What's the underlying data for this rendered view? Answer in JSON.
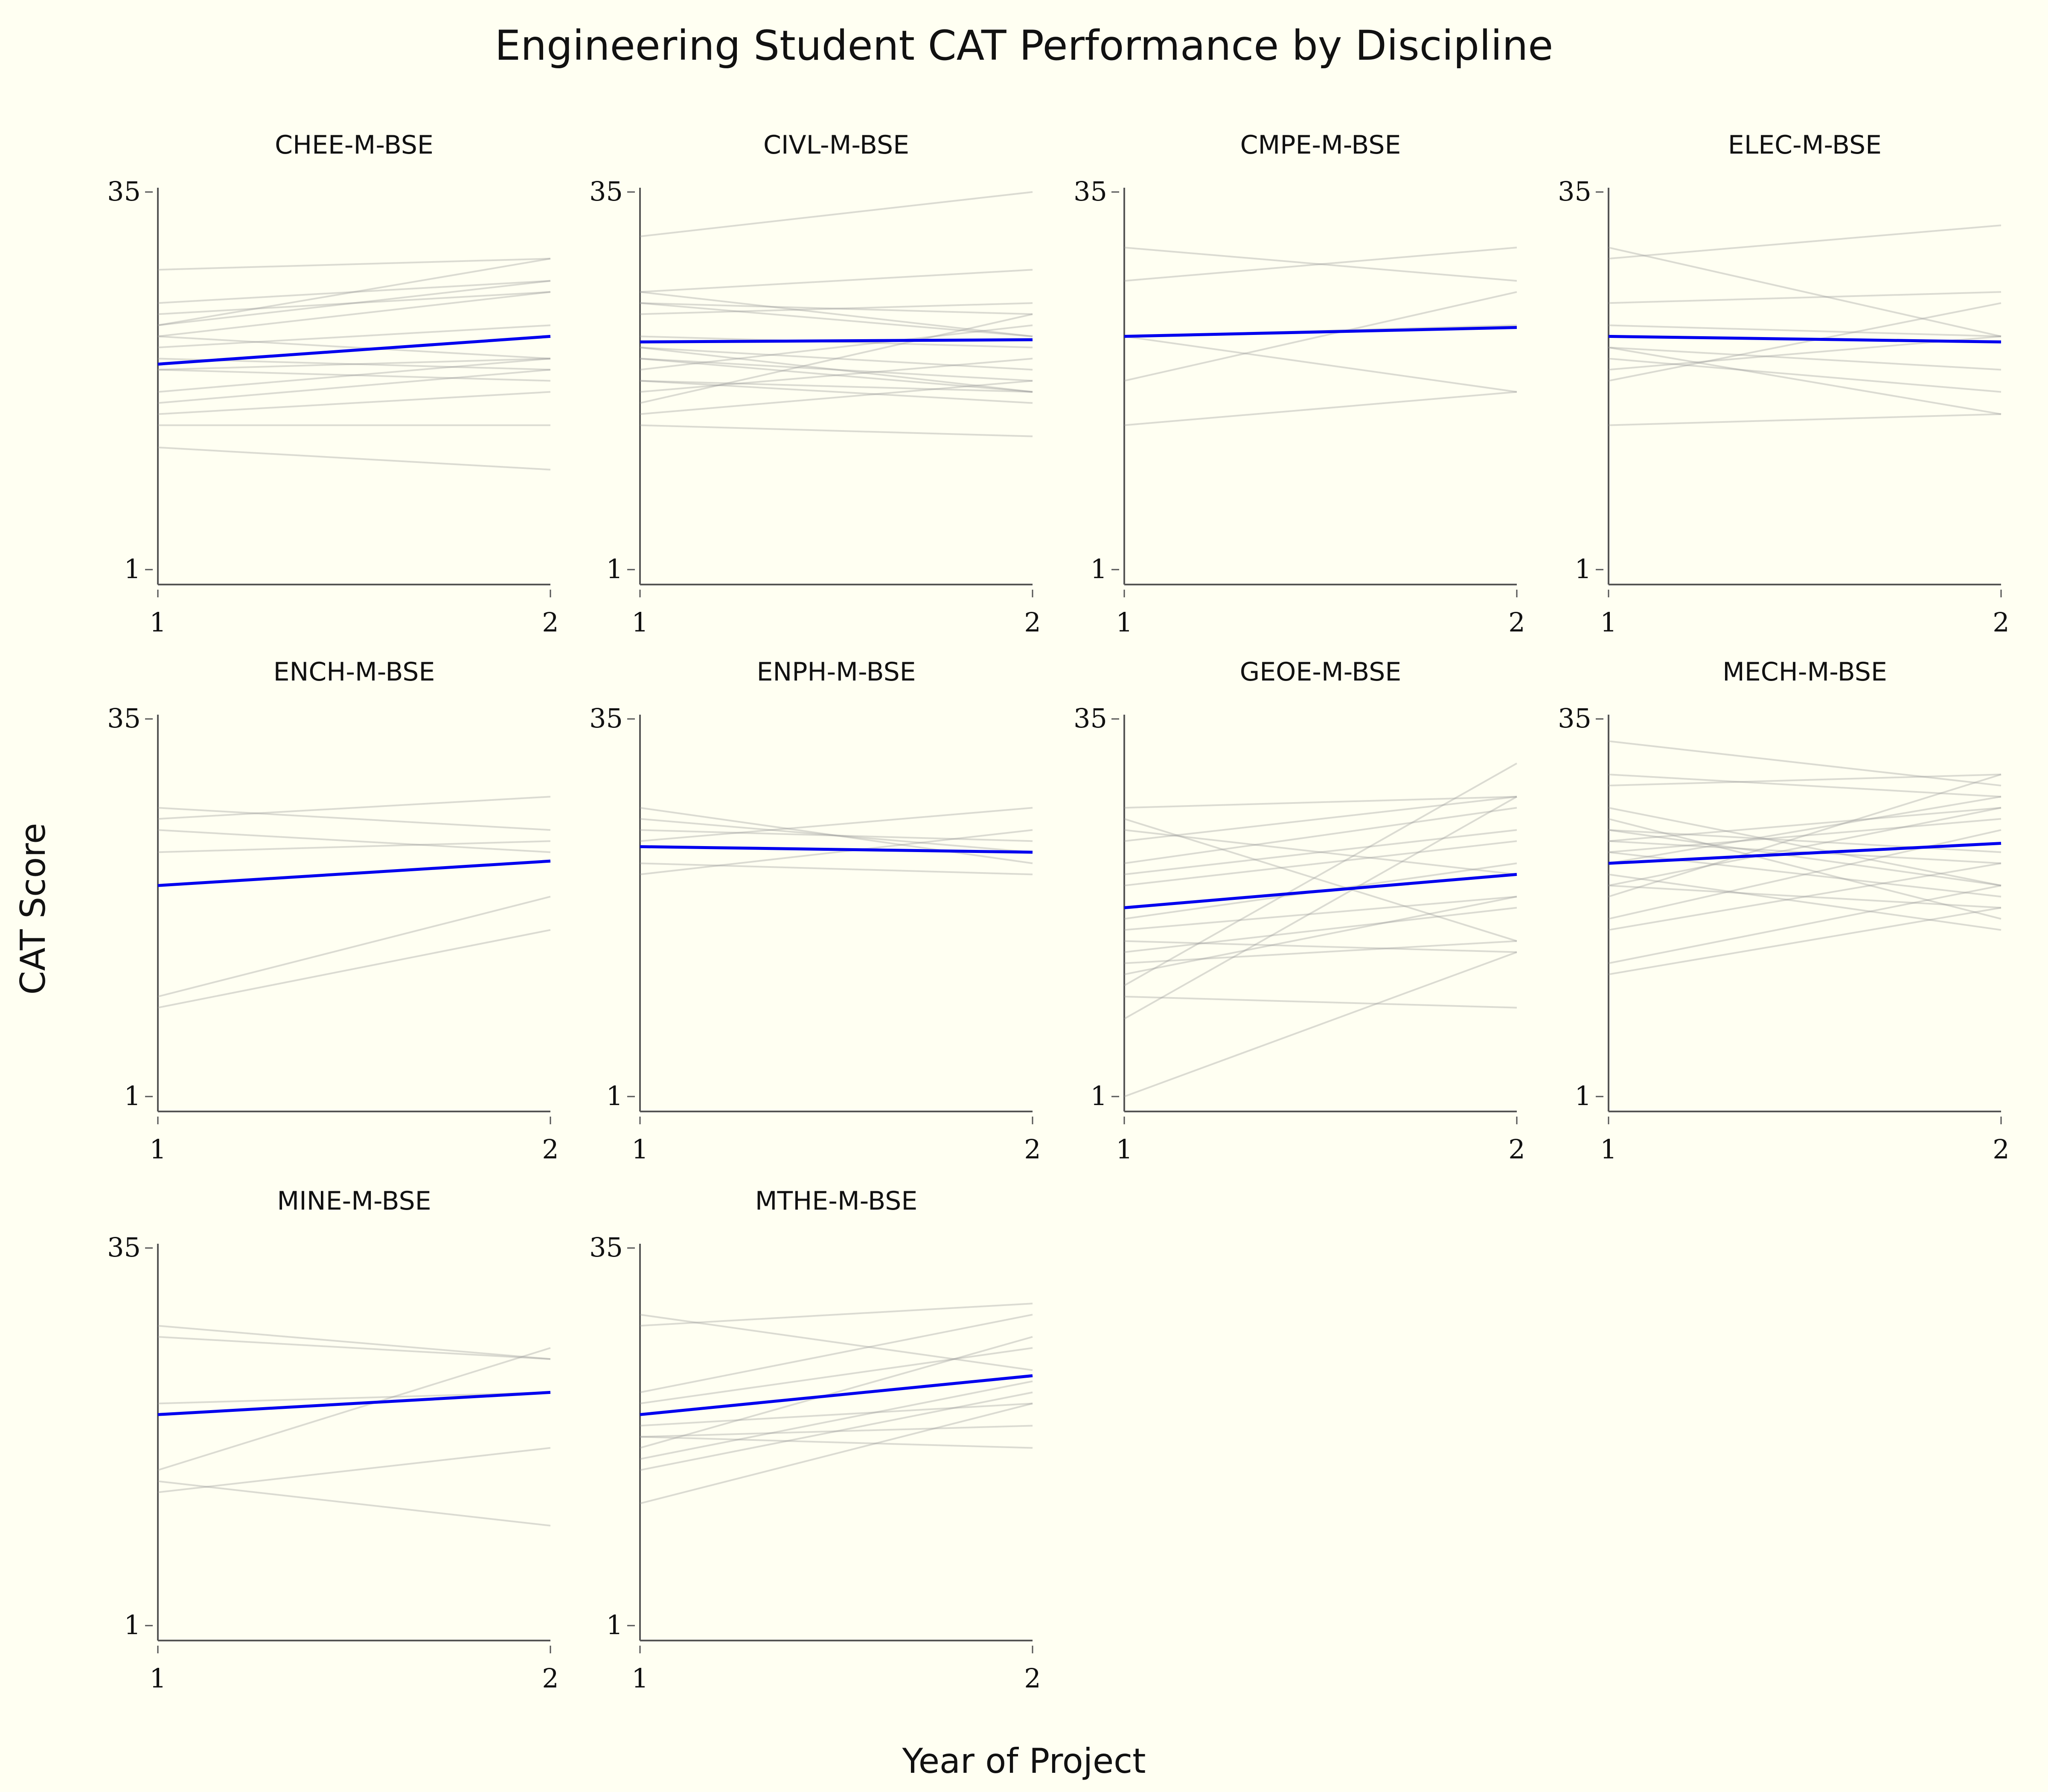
{
  "chart_data": {
    "type": "line",
    "title": "Engineering Student CAT Performance by Discipline",
    "xlabel": "Year of Project",
    "ylabel": "CAT Score",
    "x_ticks": [
      "1",
      "2"
    ],
    "y_ticks": [
      "1",
      "35"
    ],
    "xlim": [
      1,
      2
    ],
    "ylim": [
      1,
      35
    ],
    "colors": {
      "background": "#fffff2",
      "student_line": "#999999",
      "mean_line": "#0000ee",
      "axis": "#555555"
    },
    "facets": [
      {
        "name": "CHEE-M-BSE",
        "mean": [
          19.5,
          22
        ],
        "students": [
          [
            28,
            29
          ],
          [
            25,
            27
          ],
          [
            24,
            26
          ],
          [
            23,
            29
          ],
          [
            23,
            27
          ],
          [
            22,
            26
          ],
          [
            22,
            20
          ],
          [
            20,
            19
          ],
          [
            19,
            20
          ],
          [
            19,
            18
          ],
          [
            16,
            19
          ],
          [
            15,
            17
          ],
          [
            14,
            14
          ],
          [
            12,
            10
          ],
          [
            17,
            20
          ],
          [
            21,
            23
          ]
        ]
      },
      {
        "name": "CIVL-M-BSE",
        "mean": [
          21.5,
          21.7
        ],
        "students": [
          [
            31,
            35
          ],
          [
            26,
            28
          ],
          [
            26,
            22
          ],
          [
            25,
            22
          ],
          [
            25,
            24
          ],
          [
            24,
            25
          ],
          [
            22,
            21
          ],
          [
            21,
            19
          ],
          [
            20,
            17
          ],
          [
            19,
            23
          ],
          [
            18,
            16
          ],
          [
            17,
            20
          ],
          [
            16,
            24
          ],
          [
            15,
            18
          ],
          [
            14,
            13
          ],
          [
            20,
            18
          ],
          [
            21,
            17
          ],
          [
            18,
            17
          ]
        ]
      },
      {
        "name": "CMPE-M-BSE",
        "mean": [
          22,
          22.8
        ],
        "students": [
          [
            30,
            27
          ],
          [
            27,
            30
          ],
          [
            22,
            23
          ],
          [
            18,
            26
          ],
          [
            14,
            17
          ],
          [
            22,
            17
          ]
        ]
      },
      {
        "name": "ELEC-M-BSE",
        "mean": [
          22,
          21.5
        ],
        "students": [
          [
            30,
            22
          ],
          [
            29,
            32
          ],
          [
            25,
            26
          ],
          [
            23,
            22
          ],
          [
            21,
            15
          ],
          [
            20,
            17
          ],
          [
            19,
            22
          ],
          [
            18,
            25
          ],
          [
            14,
            15
          ],
          [
            21,
            19
          ]
        ]
      },
      {
        "name": "ENCH-M-BSE",
        "mean": [
          20,
          22.2
        ],
        "students": [
          [
            27,
            25
          ],
          [
            26,
            28
          ],
          [
            25,
            23
          ],
          [
            23,
            24
          ],
          [
            10,
            19
          ],
          [
            9,
            16
          ]
        ]
      },
      {
        "name": "ENPH-M-BSE",
        "mean": [
          23.5,
          23
        ],
        "students": [
          [
            27,
            22
          ],
          [
            26,
            23
          ],
          [
            25,
            24
          ],
          [
            24,
            27
          ],
          [
            22,
            21
          ],
          [
            21,
            25
          ]
        ]
      },
      {
        "name": "GEOE-M-BSE",
        "mean": [
          18,
          21
        ],
        "students": [
          [
            1,
            14
          ],
          [
            8,
            28
          ],
          [
            11,
            31
          ],
          [
            27,
            28
          ],
          [
            26,
            15
          ],
          [
            25,
            21
          ],
          [
            22,
            27
          ],
          [
            21,
            25
          ],
          [
            17,
            22
          ],
          [
            16,
            19
          ],
          [
            15,
            14
          ],
          [
            14,
            18
          ],
          [
            13,
            15
          ],
          [
            12,
            19
          ],
          [
            10,
            9
          ],
          [
            24,
            28
          ],
          [
            20,
            24
          ]
        ]
      },
      {
        "name": "MECH-M-BSE",
        "mean": [
          22,
          23.8
        ],
        "students": [
          [
            33,
            29
          ],
          [
            30,
            28
          ],
          [
            29,
            30
          ],
          [
            27,
            20
          ],
          [
            26,
            17
          ],
          [
            25,
            23
          ],
          [
            24,
            27
          ],
          [
            23,
            19
          ],
          [
            22,
            28
          ],
          [
            21,
            16
          ],
          [
            20,
            27
          ],
          [
            19,
            30
          ],
          [
            17,
            25
          ],
          [
            16,
            22
          ],
          [
            13,
            20
          ],
          [
            12,
            18
          ],
          [
            25,
            20
          ],
          [
            24,
            22
          ],
          [
            23,
            26
          ],
          [
            20,
            18
          ]
        ]
      },
      {
        "name": "MINE-M-BSE",
        "mean": [
          20,
          22
        ],
        "students": [
          [
            28,
            25
          ],
          [
            27,
            25
          ],
          [
            21,
            22
          ],
          [
            15,
            26
          ],
          [
            14,
            10
          ],
          [
            13,
            17
          ],
          [
            20,
            22
          ]
        ]
      },
      {
        "name": "MTHE-M-BSE",
        "mean": [
          20,
          23.5
        ],
        "students": [
          [
            29,
            24
          ],
          [
            28,
            30
          ],
          [
            22,
            29
          ],
          [
            21,
            26
          ],
          [
            18,
            17
          ],
          [
            17,
            27
          ],
          [
            16,
            23
          ],
          [
            15,
            22
          ],
          [
            12,
            21
          ],
          [
            19,
            21
          ],
          [
            18,
            19
          ]
        ]
      }
    ]
  }
}
